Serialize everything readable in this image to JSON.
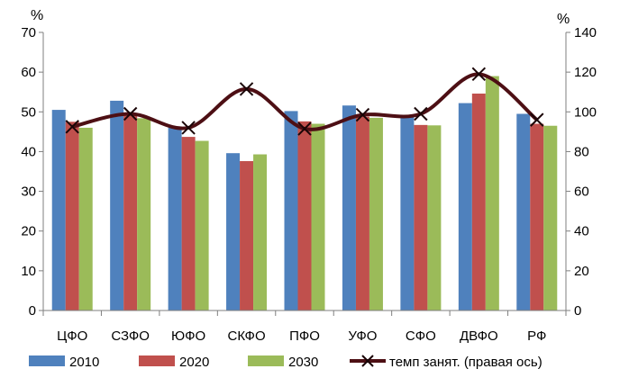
{
  "chart_data": {
    "type": "bar",
    "categories": [
      "ЦФО",
      "СЗФО",
      "ЮФО",
      "СКФО",
      "ПФО",
      "УФО",
      "СФО",
      "ДВФО",
      "РФ"
    ],
    "series": [
      {
        "name": "2010",
        "type": "bar",
        "axis": "left",
        "color": "#4F81BD",
        "values": [
          50.5,
          52.8,
          46.0,
          39.6,
          50.2,
          51.6,
          49.0,
          52.2,
          49.5
        ]
      },
      {
        "name": "2020",
        "type": "bar",
        "axis": "left",
        "color": "#C0504D",
        "values": [
          47.5,
          49.5,
          43.7,
          37.6,
          47.6,
          48.8,
          46.7,
          54.6,
          47.0
        ]
      },
      {
        "name": "2030",
        "type": "bar",
        "axis": "left",
        "color": "#9BBB59",
        "values": [
          46.0,
          48.4,
          42.7,
          39.3,
          47.0,
          48.5,
          46.6,
          59.0,
          46.5
        ]
      },
      {
        "name": "темп занят. (правая ось)",
        "type": "line",
        "axis": "right",
        "color": "#4D0F14",
        "marker": "x",
        "values": [
          92.5,
          99.0,
          92.0,
          111.5,
          91.5,
          98.5,
          99.0,
          119.0,
          96.0
        ]
      }
    ],
    "left_axis": {
      "unit": "%",
      "min": 0,
      "max": 70,
      "step": 10
    },
    "right_axis": {
      "unit": "%",
      "min": 0,
      "max": 140,
      "step": 20
    },
    "legend_position": "bottom",
    "grid": false
  }
}
